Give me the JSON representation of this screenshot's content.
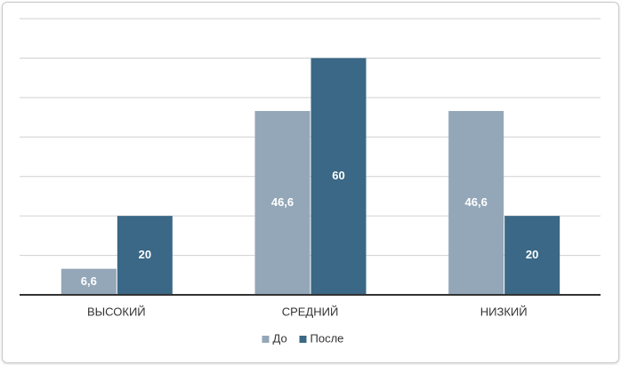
{
  "chart_data": {
    "type": "bar",
    "categories": [
      "ВЫСОКИЙ",
      "СРЕДНИЙ",
      "НИЗКИЙ"
    ],
    "series": [
      {
        "name": "До",
        "color": "#94a7b8",
        "values": [
          6.6,
          46.6,
          46.6
        ],
        "value_labels": [
          "6,6",
          "46,6",
          "46,6"
        ]
      },
      {
        "name": "После",
        "color": "#3a6886",
        "values": [
          20,
          60,
          20
        ]
      }
    ],
    "ylim": [
      0,
      70
    ],
    "yticks": [
      0,
      10,
      20,
      30,
      40,
      50,
      60,
      70
    ],
    "grid": true,
    "legend": "bottom"
  }
}
